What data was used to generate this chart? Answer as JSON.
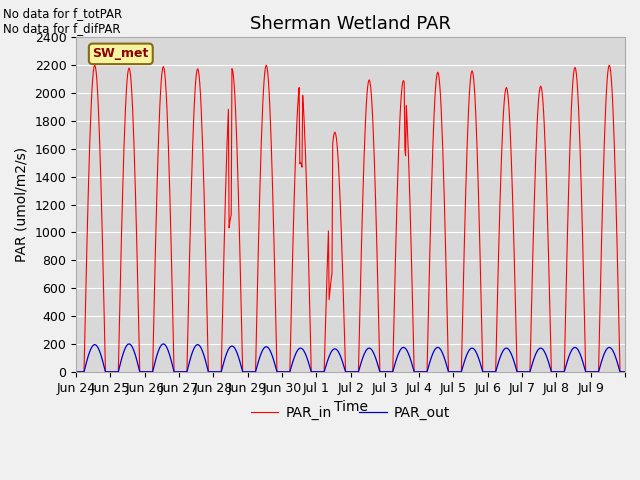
{
  "title": "Sherman Wetland PAR",
  "ylabel": "PAR (umol/m2/s)",
  "xlabel": "Time",
  "annotation1": "No data for f_totPAR",
  "annotation2": "No data for f_difPAR",
  "box_label": "SW_met",
  "ylim": [
    0,
    2400
  ],
  "yticks": [
    0,
    200,
    400,
    600,
    800,
    1000,
    1200,
    1400,
    1600,
    1800,
    2000,
    2200,
    2400
  ],
  "color_in": "#ff0000",
  "color_out": "#0000cc",
  "fig_facecolor": "#f0f0f0",
  "plot_facecolor": "#d8d8d8",
  "legend_labels": [
    "PAR_in",
    "PAR_out"
  ],
  "par_in_peaks": [
    2200,
    2180,
    2190,
    2175,
    2175,
    2200,
    2085,
    1720,
    2095,
    2090,
    2150,
    2160,
    2040,
    2050,
    2185,
    2200
  ],
  "par_out_peaks": [
    195,
    200,
    200,
    195,
    185,
    180,
    170,
    165,
    170,
    175,
    175,
    170,
    170,
    170,
    175,
    175
  ],
  "title_fontsize": 13,
  "label_fontsize": 10,
  "tick_fontsize": 9,
  "xlabels": [
    "Jun 24",
    "Jun 25",
    "Jun 26",
    "Jun 27",
    "Jun 28",
    "Jun 29",
    "Jun 30",
    "Jul 1",
    "Jul 2",
    "Jul 3",
    "Jul 4",
    "Jul 5",
    "Jul 6",
    "Jul 7",
    "Jul 8",
    "Jul 9"
  ]
}
